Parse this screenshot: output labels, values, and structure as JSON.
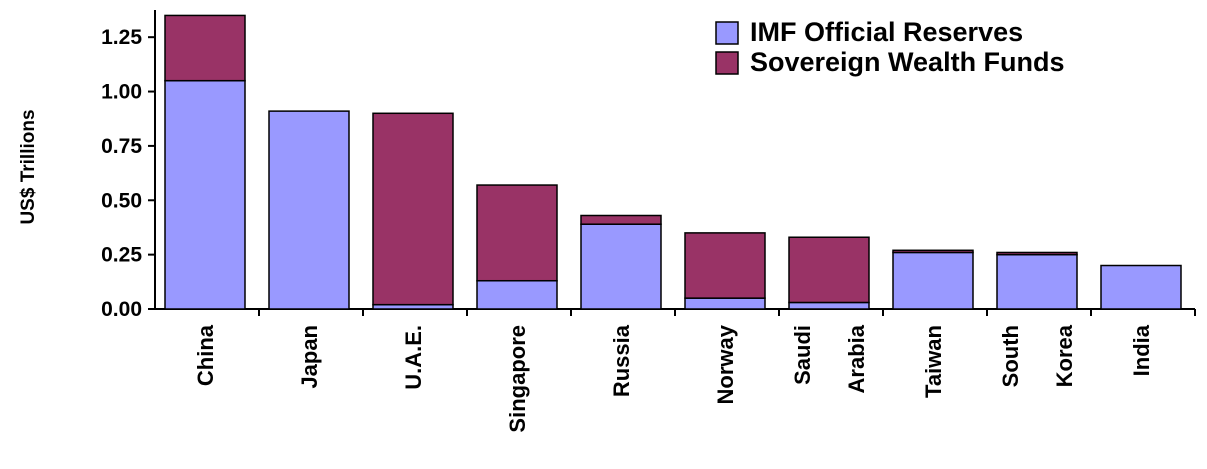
{
  "chart_data": {
    "type": "bar",
    "stacked": true,
    "title": "",
    "xlabel": "",
    "ylabel": "US$ Trillions",
    "ylim": [
      0,
      1.375
    ],
    "yticks": [
      "0.00",
      "0.25",
      "0.50",
      "0.75",
      "1.00",
      "1.25"
    ],
    "grid": false,
    "legend_position": "top-right",
    "categories": [
      [
        "China"
      ],
      [
        "Japan"
      ],
      [
        "U.A.E."
      ],
      [
        "Singapore"
      ],
      [
        "Russia"
      ],
      [
        "Norway"
      ],
      [
        "Saudi",
        "Arabia"
      ],
      [
        "Taiwan"
      ],
      [
        "South",
        "Korea"
      ],
      [
        "India"
      ]
    ],
    "series": [
      {
        "name": "IMF Official Reserves",
        "color": "#9999ff",
        "values": [
          1.05,
          0.91,
          0.02,
          0.13,
          0.39,
          0.05,
          0.03,
          0.26,
          0.25,
          0.2
        ]
      },
      {
        "name": "Sovereign Wealth Funds",
        "color": "#993366",
        "values": [
          0.3,
          0.0,
          0.88,
          0.44,
          0.04,
          0.3,
          0.3,
          0.01,
          0.01,
          0.0
        ]
      }
    ]
  }
}
